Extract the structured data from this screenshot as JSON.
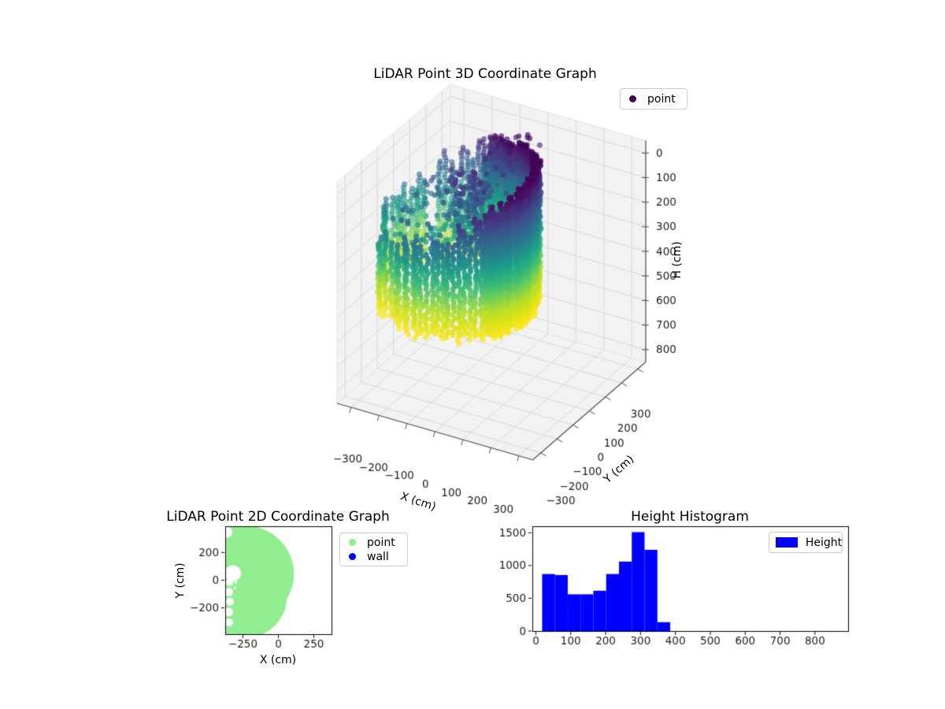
{
  "figure": {
    "background": "#ffffff"
  },
  "chart_data": [
    {
      "id": "plot3d",
      "type": "scatter3d",
      "title": "LiDAR Point 3D Coordinate Graph",
      "xlabel": "X (cm)",
      "ylabel": "Y (cm)",
      "zlabel": "H (cm)",
      "legend": [
        {
          "label": "point",
          "color": "#440154"
        }
      ],
      "xticks": [
        -300,
        -200,
        -100,
        0,
        100,
        200,
        300
      ],
      "yticks": [
        -300,
        -200,
        -100,
        0,
        100,
        200,
        300
      ],
      "zticks": [
        0,
        100,
        200,
        300,
        400,
        500,
        600,
        700,
        800
      ],
      "xlim": [
        -350,
        350
      ],
      "ylim": [
        -350,
        350
      ],
      "zlim": [
        -50,
        850
      ],
      "zaxis_inverted": true,
      "view": {
        "azim": -60,
        "elev": 30
      },
      "grid": true,
      "pane_color": "#f2f2f2",
      "grid_color": "#d9d9d9",
      "axisline_color": "#4d4d4d",
      "colormap": "viridis",
      "colormap_stops": [
        [
          0,
          "#440154"
        ],
        [
          0.1,
          "#482878"
        ],
        [
          0.2,
          "#3e4a89"
        ],
        [
          0.3,
          "#31688e"
        ],
        [
          0.4,
          "#26828e"
        ],
        [
          0.5,
          "#1f9e89"
        ],
        [
          0.6,
          "#35b779"
        ],
        [
          0.7,
          "#6ece58"
        ],
        [
          0.8,
          "#b5de2b"
        ],
        [
          0.9,
          "#dfe318"
        ],
        [
          1,
          "#fde725"
        ]
      ],
      "color_by": "H",
      "color_range": [
        0,
        560
      ],
      "point_cloud": {
        "seed": 11,
        "marker_px": 3.4,
        "ring": {
          "cx": -120,
          "cy": 0,
          "radius": 245,
          "radius_jitter": 10,
          "angle_step_deg": 4,
          "dense_angle_step_deg": 1.6,
          "dense_cos_threshold": 0.35,
          "dark_angle_deg": 30,
          "h_top_base": 0,
          "h_top_amp": 130,
          "h_top_jitter": 40,
          "h_bottom": 555,
          "h_bottom_jitter": 18,
          "h_step": 13,
          "dense_h_step": 7,
          "gap_angles": [
            [
              196,
              224
            ]
          ],
          "sparse_skip_prob": 0.18,
          "xy_jitter": 5
        },
        "interior": {
          "count": 170,
          "r_max": 215,
          "h_min": 140,
          "h_max": 420
        },
        "clusters": [
          {
            "cx": -100,
            "cy": 40,
            "sigma": 45,
            "count": 260,
            "h_min": 70,
            "h_max": 330
          },
          {
            "cx": -55,
            "cy": 230,
            "sigma": 30,
            "count": 130,
            "h_min": 10,
            "h_max": 140
          }
        ]
      }
    },
    {
      "id": "plot2d",
      "type": "scatter",
      "title": "LiDAR Point 2D Coordinate Graph",
      "xlabel": "X (cm)",
      "ylabel": "Y (cm)",
      "legend": [
        {
          "label": "point",
          "color": "#90ee90"
        },
        {
          "label": "wall",
          "color": "#0000ff"
        }
      ],
      "xticks": [
        -250,
        0,
        250
      ],
      "yticks": [
        -200,
        0,
        200
      ],
      "xlim": [
        -375,
        375
      ],
      "ylim": [
        -390,
        390
      ],
      "point_color": "#90ee90",
      "wall_color": "#0000ff",
      "region": {
        "fill_circles": [
          [
            -240,
            45,
            350
          ],
          [
            -240,
            -120,
            300
          ]
        ],
        "cutout_circles": [
          [
            -320,
            50,
            58
          ],
          [
            -345,
            -15,
            26
          ],
          [
            -350,
            -85,
            30
          ],
          [
            -342,
            -155,
            28
          ],
          [
            -352,
            -230,
            32
          ],
          [
            -348,
            -305,
            28
          ],
          [
            -365,
            345,
            40
          ],
          [
            -300,
            -15,
            10
          ],
          [
            -305,
            -55,
            9
          ]
        ]
      }
    },
    {
      "id": "histogram",
      "type": "bar",
      "title": "Height Histogram",
      "legend": [
        {
          "label": "Height",
          "color": "#0000ff"
        }
      ],
      "bar_color": "#0000ff",
      "bin_start": 18,
      "bin_width": 36.7,
      "values": [
        870,
        855,
        560,
        560,
        615,
        870,
        1060,
        1510,
        1240,
        135
      ],
      "xticks": [
        0,
        100,
        200,
        300,
        400,
        500,
        600,
        700,
        800
      ],
      "yticks": [
        0,
        500,
        1000,
        1500
      ],
      "xlim": [
        -10,
        895
      ],
      "ylim": [
        0,
        1600
      ]
    }
  ]
}
